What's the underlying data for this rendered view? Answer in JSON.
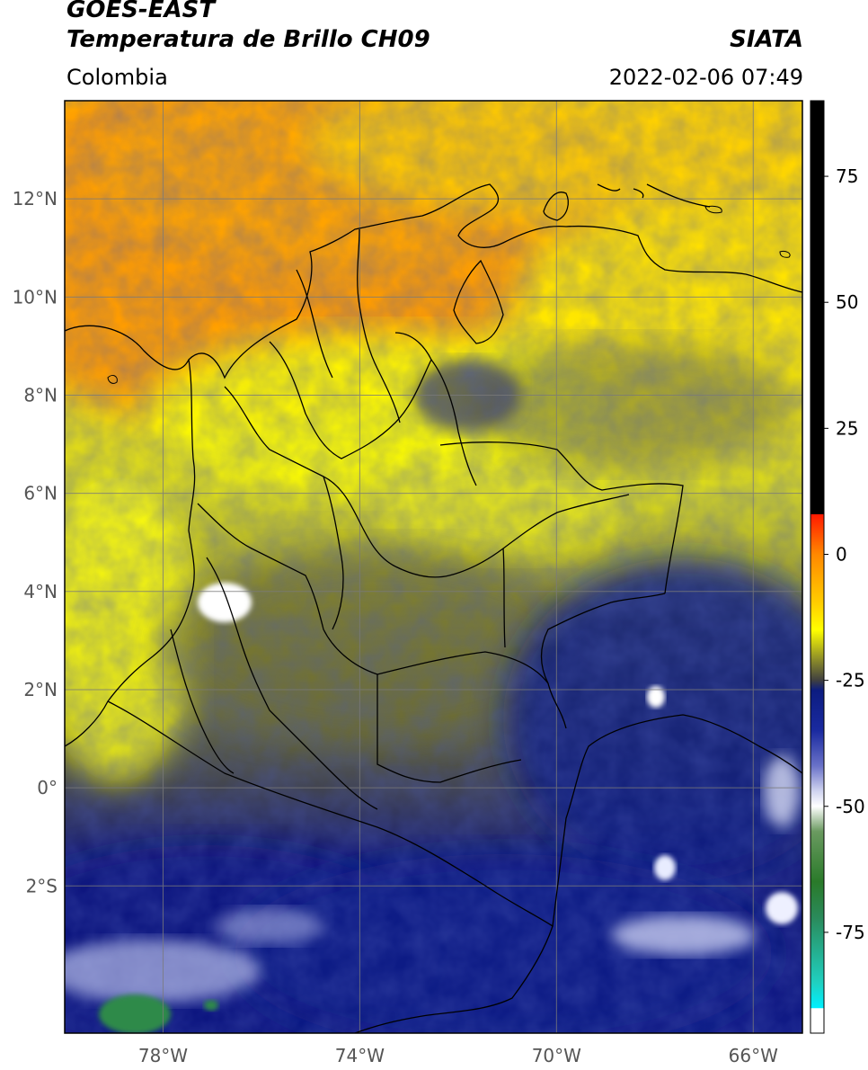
{
  "header": {
    "satellite": "GOES-EAST",
    "product": "Temperatura de Brillo CH09",
    "source": "SIATA",
    "region": "Colombia",
    "datetime": "2022-02-06 07:49"
  },
  "map": {
    "lon_range": [
      -80,
      -65
    ],
    "lat_range": [
      -5,
      14
    ],
    "lon_ticks": [
      {
        "value": -78,
        "label": "78°W"
      },
      {
        "value": -74,
        "label": "74°W"
      },
      {
        "value": -70,
        "label": "70°W"
      },
      {
        "value": -66,
        "label": "66°W"
      }
    ],
    "lat_ticks": [
      {
        "value": 12,
        "label": "12°N"
      },
      {
        "value": 10,
        "label": "10°N"
      },
      {
        "value": 8,
        "label": "8°N"
      },
      {
        "value": 6,
        "label": "6°N"
      },
      {
        "value": 4,
        "label": "4°N"
      },
      {
        "value": 2,
        "label": "2°N"
      },
      {
        "value": 0,
        "label": "0°"
      },
      {
        "value": -2,
        "label": "2°S"
      }
    ],
    "grid": true
  },
  "colorbar": {
    "range": [
      -95,
      90
    ],
    "ticks": [
      {
        "value": 75,
        "label": "75"
      },
      {
        "value": 50,
        "label": "50"
      },
      {
        "value": 25,
        "label": "25"
      },
      {
        "value": 0,
        "label": "0"
      },
      {
        "value": -25,
        "label": "-25"
      },
      {
        "value": -50,
        "label": "-50"
      },
      {
        "value": -75,
        "label": "-75"
      }
    ],
    "stops": [
      {
        "value": 90,
        "color": "#000000"
      },
      {
        "value": 8,
        "color": "#000000"
      },
      {
        "value": 7.9,
        "color": "#ff1a00"
      },
      {
        "value": 0,
        "color": "#ff8800"
      },
      {
        "value": -10,
        "color": "#ffd000"
      },
      {
        "value": -15,
        "color": "#ffff00"
      },
      {
        "value": -21,
        "color": "#8a8a2a"
      },
      {
        "value": -25,
        "color": "#404040"
      },
      {
        "value": -27,
        "color": "#0c1c80"
      },
      {
        "value": -35,
        "color": "#1a2aa0"
      },
      {
        "value": -42,
        "color": "#6a72c8"
      },
      {
        "value": -47,
        "color": "#d0d4f0"
      },
      {
        "value": -50,
        "color": "#ffffff"
      },
      {
        "value": -55,
        "color": "#6a9a60"
      },
      {
        "value": -65,
        "color": "#2a7a2a"
      },
      {
        "value": -72,
        "color": "#2a8a5a"
      },
      {
        "value": -85,
        "color": "#20d0c0"
      },
      {
        "value": -90,
        "color": "#00f0ff"
      },
      {
        "value": -90.1,
        "color": "#ffffff"
      },
      {
        "value": -95,
        "color": "#ffffff"
      }
    ]
  },
  "colors": {
    "warm_orange": "#ff9900",
    "warm_yellow": "#ffe000",
    "olive": "#8c8c2a",
    "cold_navy": "#121a7a",
    "very_cold_white": "#ffffff",
    "coldest_green": "#2e8a4a"
  }
}
